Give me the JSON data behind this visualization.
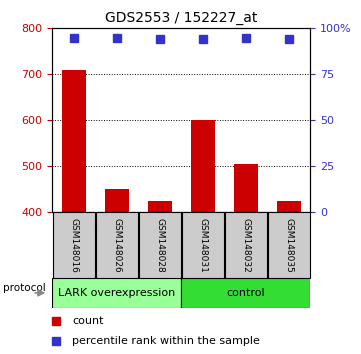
{
  "title": "GDS2553 / 152227_at",
  "samples": [
    "GSM148016",
    "GSM148026",
    "GSM148028",
    "GSM148031",
    "GSM148032",
    "GSM148035"
  ],
  "counts": [
    710,
    450,
    425,
    600,
    505,
    425
  ],
  "percentile_ranks": [
    95,
    95,
    94,
    94,
    95,
    94
  ],
  "ylim_left": [
    400,
    800
  ],
  "ylim_right": [
    0,
    100
  ],
  "yticks_left": [
    400,
    500,
    600,
    700,
    800
  ],
  "yticks_right": [
    0,
    25,
    50,
    75,
    100
  ],
  "bar_color": "#cc0000",
  "dot_color": "#3333cc",
  "bar_width": 0.55,
  "groups": [
    {
      "label": "LARK overexpression",
      "start": 0,
      "end": 3,
      "color": "#99ff99"
    },
    {
      "label": "control",
      "start": 3,
      "end": 6,
      "color": "#33dd33"
    }
  ],
  "protocol_label": "protocol",
  "legend_count_label": "count",
  "legend_pct_label": "percentile rank within the sample",
  "sample_box_color": "#cccccc",
  "left_axis_color": "#cc0000",
  "right_axis_color": "#3333cc",
  "title_fontsize": 10,
  "tick_fontsize": 8,
  "sample_fontsize": 6.5,
  "proto_fontsize": 8,
  "legend_fontsize": 8
}
